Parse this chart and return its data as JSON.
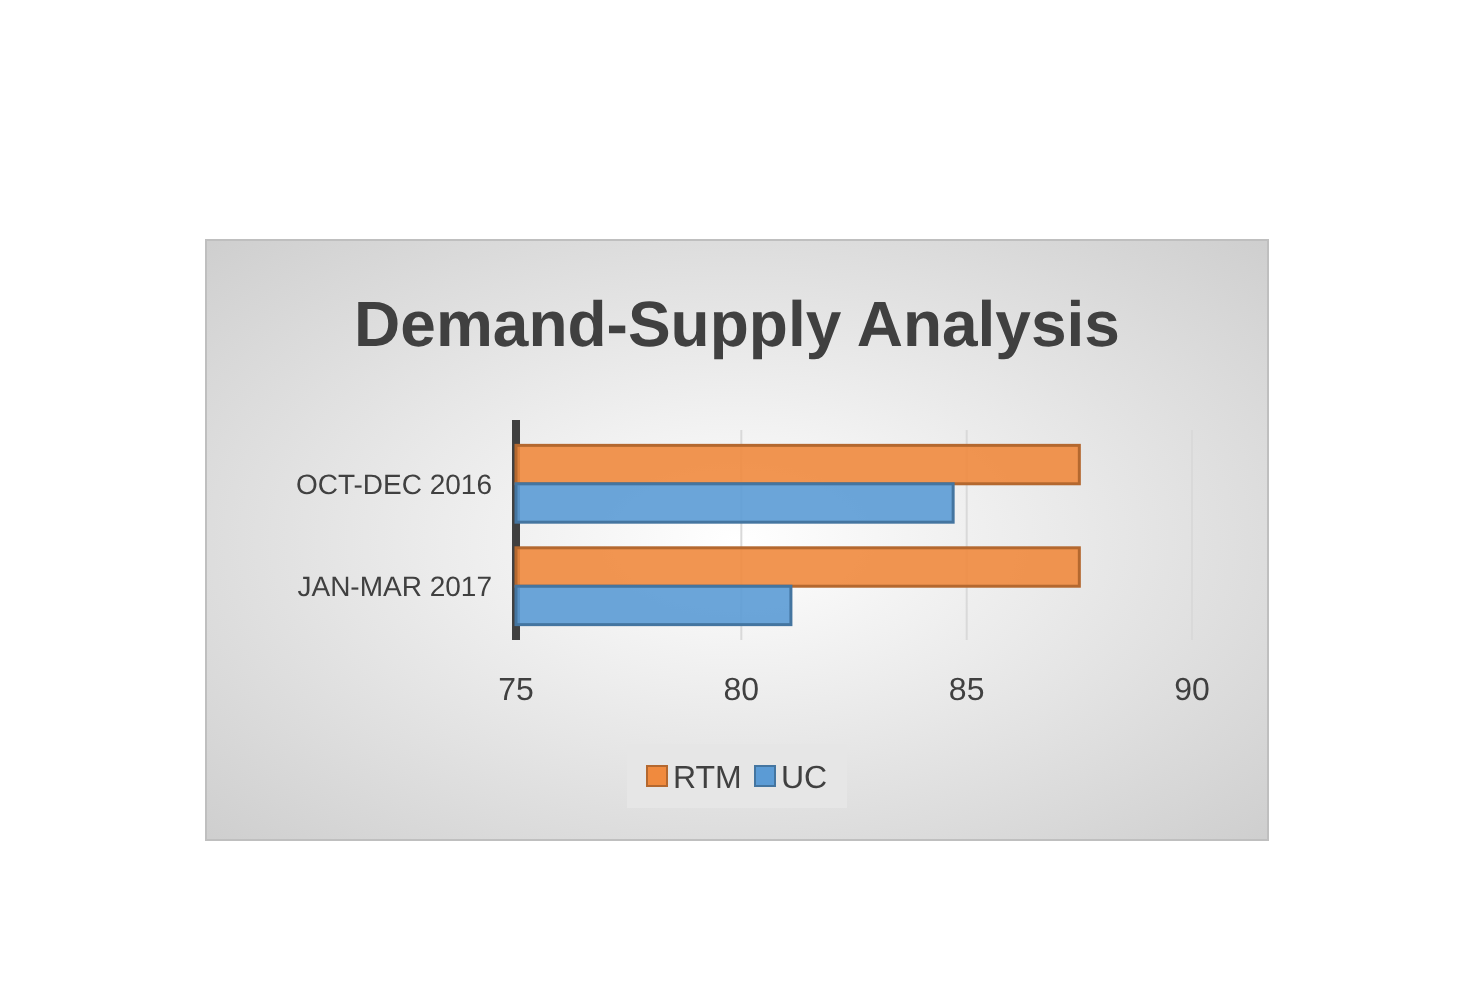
{
  "chart_data": {
    "type": "bar",
    "orientation": "horizontal",
    "title": "Demand-Supply Analysis",
    "categories": [
      "OCT-DEC 2016",
      "JAN-MAR 2017"
    ],
    "series": [
      {
        "name": "RTM",
        "color": "#f08a3e",
        "values": [
          87.5,
          87.5
        ]
      },
      {
        "name": "UC",
        "color": "#5b9bd5",
        "values": [
          84.7,
          81.1
        ]
      }
    ],
    "xlim": [
      75,
      90
    ],
    "xticks": [
      75,
      80,
      85,
      90
    ],
    "grid": "x",
    "legend": "bottom"
  }
}
